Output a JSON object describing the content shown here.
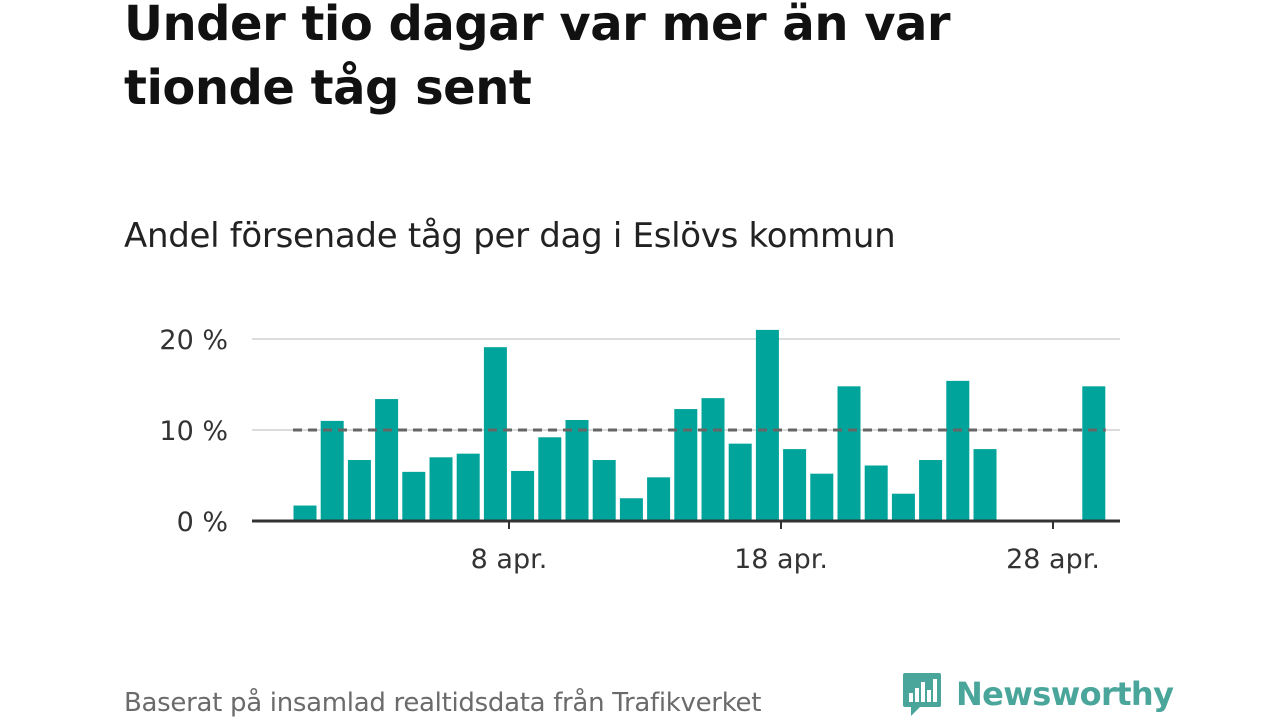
{
  "title": "Under tio dagar var mer än var tionde tåg sent",
  "subtitle": "Andel försenade tåg per dag i Eslövs kommun",
  "source": "Baserat på insamlad realtidsdata från Trafikverket",
  "brand": {
    "name": "Newsworthy",
    "icon": "newsworthy-bar-chart-logo-icon",
    "color": "#4aa59a"
  },
  "colors": {
    "bar": "#00a49a",
    "reference_line": "#666666",
    "grid": "#dcdcdc",
    "axis": "#333333"
  },
  "chart_data": {
    "type": "bar",
    "x_start_date": "2024-03-30",
    "values": [
      1.7,
      11.0,
      6.7,
      13.4,
      5.4,
      7.0,
      7.4,
      19.1,
      5.5,
      9.2,
      11.1,
      6.7,
      2.5,
      4.8,
      12.3,
      13.5,
      8.5,
      21.0,
      7.9,
      5.2,
      14.8,
      6.1,
      3.0,
      6.7,
      15.4,
      7.9,
      null,
      null,
      null,
      14.8
    ],
    "reference_line": 10,
    "ylim": [
      0,
      21.5
    ],
    "y_ticks": [
      {
        "value": 0,
        "label": "0 %"
      },
      {
        "value": 10,
        "label": "10 %"
      },
      {
        "value": 20,
        "label": "20 %"
      }
    ],
    "x_ticks": [
      {
        "index": 7.5,
        "label": "8 apr."
      },
      {
        "index": 17.5,
        "label": "18 apr."
      },
      {
        "index": 27.5,
        "label": "28 apr."
      }
    ],
    "grid": true
  }
}
